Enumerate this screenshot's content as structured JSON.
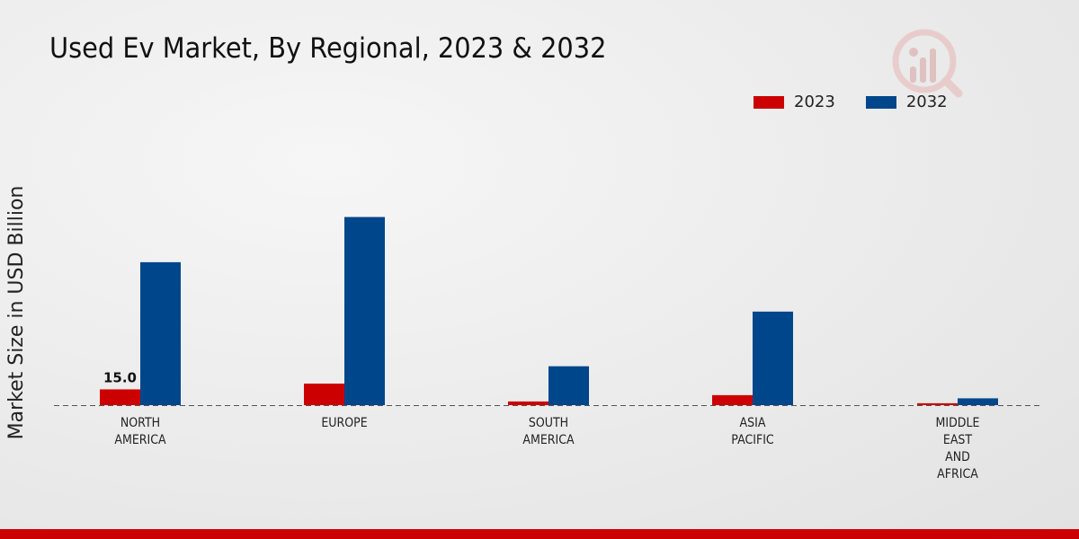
{
  "chart_data": {
    "type": "bar",
    "title": "Used Ev Market, By Regional, 2023 & 2032",
    "xlabel": "",
    "ylabel": "Market Size in USD Billion",
    "categories": [
      [
        "NORTH",
        "AMERICA"
      ],
      [
        "EUROPE"
      ],
      [
        "SOUTH",
        "AMERICA"
      ],
      [
        "ASIA",
        "PACIFIC"
      ],
      [
        "MIDDLE",
        "EAST",
        "AND",
        "AFRICA"
      ]
    ],
    "series": [
      {
        "name": "2023",
        "color": "#cc0000",
        "values": [
          15.0,
          20.5,
          3.5,
          9.5,
          1.8
        ]
      },
      {
        "name": "2032",
        "color": "#00468b",
        "values": [
          136.0,
          179.0,
          37.0,
          89.0,
          6.5
        ]
      }
    ],
    "data_labels": [
      {
        "series": 0,
        "index": 0,
        "text": "15.0"
      }
    ],
    "ylim": [
      0,
      300
    ],
    "grid": false,
    "legend_position": "top-right"
  }
}
